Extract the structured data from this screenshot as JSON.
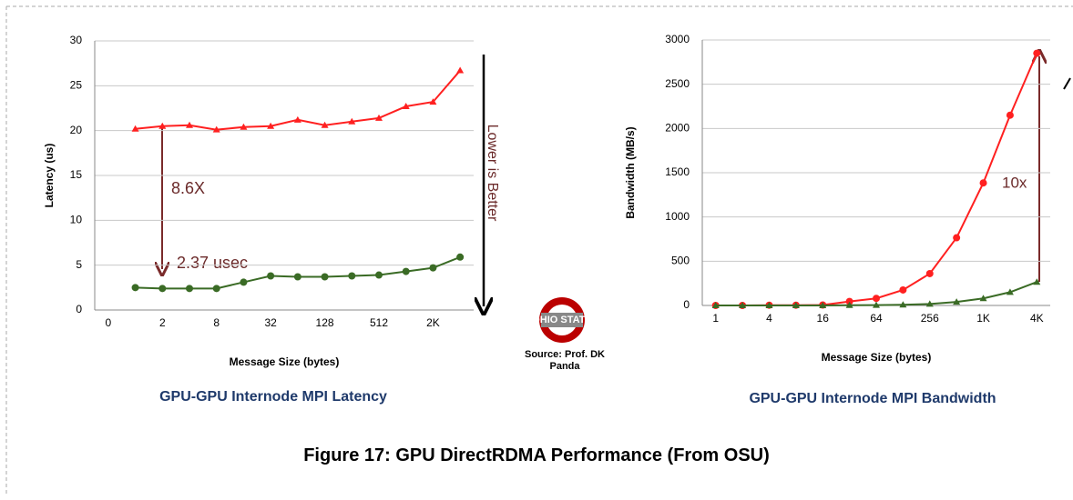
{
  "chart_data": [
    {
      "type": "line",
      "title": "GPU-GPU Internode MPI Latency",
      "xlabel": "Message Size (bytes)",
      "ylabel": "Latency (us)",
      "categories": [
        "0",
        null,
        "2",
        null,
        "8",
        null,
        "32",
        null,
        "128",
        null,
        "512",
        null,
        "2K",
        null
      ],
      "series": [
        {
          "color": "#ff2020",
          "marker": "triangle",
          "values": [
            null,
            20.2,
            20.5,
            20.6,
            20.1,
            20.4,
            20.5,
            21.2,
            20.6,
            21.0,
            21.4,
            22.7,
            23.2,
            26.7
          ]
        },
        {
          "color": "#3a6b25",
          "marker": "circle",
          "values": [
            null,
            2.5,
            2.4,
            2.4,
            2.4,
            3.1,
            3.8,
            3.7,
            3.7,
            3.8,
            3.9,
            4.3,
            4.7,
            5.9
          ]
        }
      ],
      "ylim": [
        0,
        30
      ],
      "yticks": [
        0,
        5,
        10,
        15,
        20,
        25,
        30
      ],
      "grid": true,
      "annotations": [
        "8.6X",
        "2.37 usec",
        "Lower is Better"
      ]
    },
    {
      "type": "line",
      "title": "GPU-GPU Internode MPI Bandwidth",
      "xlabel": "Message Size (bytes)",
      "ylabel": "Bandwidth (MB/s)",
      "categories": [
        "1",
        null,
        "4",
        null,
        "16",
        null,
        "64",
        null,
        "256",
        null,
        "1K",
        null,
        "4K"
      ],
      "series": [
        {
          "color": "#ff2020",
          "marker": "circle",
          "values": [
            0,
            0,
            3,
            3,
            5,
            45,
            80,
            175,
            360,
            765,
            1385,
            2150,
            2850
          ]
        },
        {
          "color": "#3a6b25",
          "marker": "triangle",
          "values": [
            0,
            0,
            0,
            0,
            0,
            2,
            4,
            8,
            17,
            40,
            80,
            150,
            265
          ]
        }
      ],
      "ylim": [
        0,
        3000
      ],
      "yticks": [
        0,
        500,
        1000,
        1500,
        2000,
        2500,
        3000
      ],
      "grid": true,
      "annotations": [
        "10x"
      ]
    }
  ],
  "source": "Source: Prof. DK Panda",
  "caption": "Figure 17: GPU DirectRDMA Performance (From OSU)"
}
